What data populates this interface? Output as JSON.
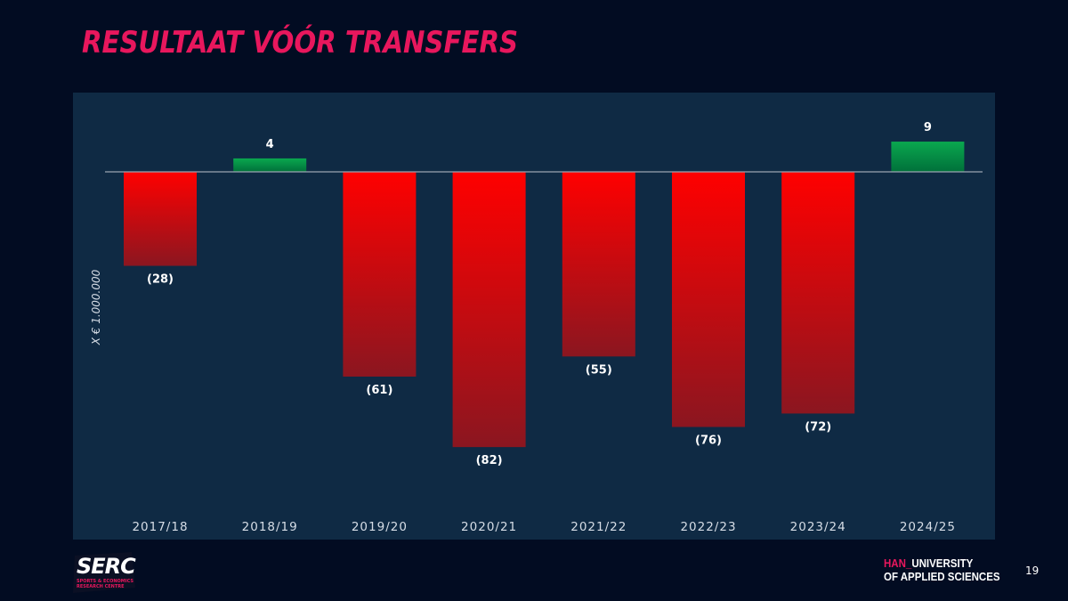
{
  "title": "RESULTAAT VÓÓR TRANSFERS",
  "page_number": "19",
  "logos": {
    "serc": {
      "word": "SERC",
      "subtitle_line1": "SPORTS & ECONOMICS",
      "subtitle_line2": "RESEARCH CENTRE"
    },
    "han": {
      "prefix": "HAN",
      "separator": "_",
      "line1": "UNIVERSITY",
      "line2": "OF APPLIED SCIENCES"
    }
  },
  "colors": {
    "background": "#020c22",
    "panel": "#0f2a44",
    "title": "#e8175d",
    "negative_top": "#ff0000",
    "negative_bottom": "#8b1620",
    "positive_top": "#0aa84f",
    "positive_bottom": "#00703a",
    "baseline": "#9aa5b1"
  },
  "chart_data": {
    "type": "bar",
    "title": "RESULTAAT VÓÓR TRANSFERS",
    "ylabel": "X € 1.000.000",
    "xlabel": "",
    "categories": [
      "2017/18",
      "2018/19",
      "2019/20",
      "2020/21",
      "2021/22",
      "2022/23",
      "2023/24",
      "2024/25"
    ],
    "values": [
      -28,
      4,
      -61,
      -82,
      -55,
      -76,
      -72,
      9
    ],
    "data_labels": [
      "(28)",
      "4",
      "(61)",
      "(82)",
      "(55)",
      "(76)",
      "(72)",
      "9"
    ],
    "ylim": [
      -82,
      9
    ],
    "grid": false,
    "legend": "none"
  }
}
